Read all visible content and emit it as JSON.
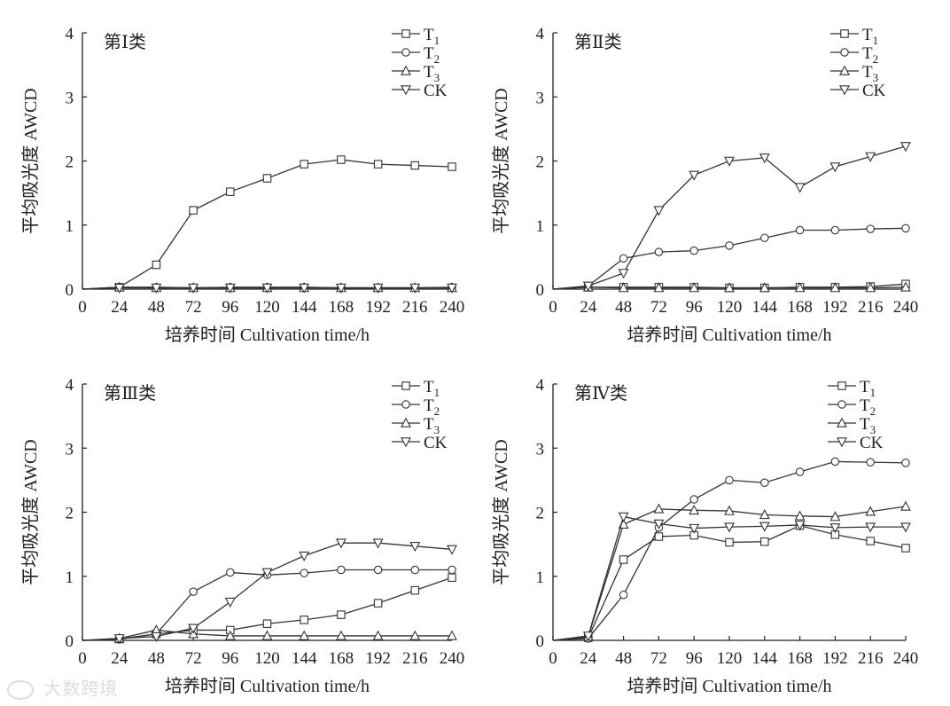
{
  "figure": {
    "watermark": "大数跨境"
  },
  "chart_data": [
    {
      "type": "line",
      "title": "第Ⅰ类",
      "xlabel": "培养时间 Cultivation time/h",
      "ylabel": "平均吸光度 AWCD",
      "x": [
        0,
        24,
        48,
        72,
        96,
        120,
        144,
        168,
        192,
        216,
        240
      ],
      "xlim": [
        0,
        240
      ],
      "ylim": [
        0,
        4
      ],
      "yticks": [
        0,
        1,
        2,
        3,
        4
      ],
      "grid": false,
      "legend": "top-right",
      "series": [
        {
          "name": "T",
          "sub": "1",
          "marker": "square",
          "values": [
            0,
            0.03,
            0.38,
            1.23,
            1.52,
            1.73,
            1.95,
            2.02,
            1.95,
            1.93,
            1.91
          ]
        },
        {
          "name": "T",
          "sub": "2",
          "marker": "circle",
          "values": [
            0,
            0.03,
            0.03,
            0.02,
            0.03,
            0.03,
            0.03,
            0.02,
            0.02,
            0.02,
            0.03
          ]
        },
        {
          "name": "T",
          "sub": "3",
          "marker": "triangle-up",
          "values": [
            0,
            0.03,
            0.02,
            0.02,
            0.02,
            0.02,
            0.02,
            0.02,
            0.02,
            0.02,
            0.02
          ]
        },
        {
          "name": "CK",
          "sub": "",
          "marker": "triangle-down",
          "values": [
            0,
            0.02,
            0.02,
            0.02,
            0.02,
            0.02,
            0.02,
            0.02,
            0.02,
            0.02,
            0.02
          ]
        }
      ]
    },
    {
      "type": "line",
      "title": "第Ⅱ类",
      "xlabel": "培养时间 Cultivation time/h",
      "ylabel": "平均吸光度 AWCD",
      "x": [
        0,
        24,
        48,
        72,
        96,
        120,
        144,
        168,
        192,
        216,
        240
      ],
      "xlim": [
        0,
        240
      ],
      "ylim": [
        0,
        4
      ],
      "yticks": [
        0,
        1,
        2,
        3,
        4
      ],
      "grid": false,
      "legend": "top-right",
      "series": [
        {
          "name": "T",
          "sub": "1",
          "marker": "square",
          "values": [
            0,
            0.03,
            0.03,
            0.03,
            0.03,
            0.02,
            0.02,
            0.03,
            0.03,
            0.04,
            0.08
          ]
        },
        {
          "name": "T",
          "sub": "2",
          "marker": "circle",
          "values": [
            0,
            0.05,
            0.48,
            0.58,
            0.6,
            0.68,
            0.8,
            0.92,
            0.92,
            0.94,
            0.95
          ]
        },
        {
          "name": "T",
          "sub": "3",
          "marker": "triangle-up",
          "values": [
            0,
            0.03,
            0.02,
            0.02,
            0.02,
            0.02,
            0.02,
            0.02,
            0.02,
            0.02,
            0.03
          ]
        },
        {
          "name": "CK",
          "sub": "",
          "marker": "triangle-down",
          "values": [
            0,
            0.05,
            0.25,
            1.23,
            1.78,
            2.0,
            2.05,
            1.59,
            1.91,
            2.07,
            2.23
          ]
        }
      ]
    },
    {
      "type": "line",
      "title": "第Ⅲ类",
      "xlabel": "培养时间 Cultivation time/h",
      "ylabel": "平均吸光度 AWCD",
      "x": [
        0,
        24,
        48,
        72,
        96,
        120,
        144,
        168,
        192,
        216,
        240
      ],
      "xlim": [
        0,
        240
      ],
      "ylim": [
        0,
        4
      ],
      "yticks": [
        0,
        1,
        2,
        3,
        4
      ],
      "grid": false,
      "legend": "top-right",
      "series": [
        {
          "name": "T",
          "sub": "1",
          "marker": "square",
          "values": [
            0,
            0.02,
            0.1,
            0.16,
            0.16,
            0.26,
            0.32,
            0.4,
            0.58,
            0.78,
            0.98
          ]
        },
        {
          "name": "T",
          "sub": "2",
          "marker": "circle",
          "values": [
            0,
            0.02,
            0.1,
            0.76,
            1.06,
            1.02,
            1.05,
            1.1,
            1.1,
            1.1,
            1.1
          ]
        },
        {
          "name": "T",
          "sub": "3",
          "marker": "triangle-up",
          "values": [
            0,
            0.03,
            0.16,
            0.1,
            0.07,
            0.07,
            0.07,
            0.07,
            0.07,
            0.07,
            0.07
          ]
        },
        {
          "name": "CK",
          "sub": "",
          "marker": "triangle-down",
          "values": [
            0,
            0.03,
            0.06,
            0.19,
            0.6,
            1.06,
            1.32,
            1.52,
            1.52,
            1.47,
            1.42
          ]
        }
      ]
    },
    {
      "type": "line",
      "title": "第Ⅳ类",
      "xlabel": "培养时间 Cultivation time/h",
      "ylabel": "平均吸光度 AWCD",
      "x": [
        0,
        24,
        48,
        72,
        96,
        120,
        144,
        168,
        192,
        216,
        240
      ],
      "xlim": [
        0,
        240
      ],
      "ylim": [
        0,
        4
      ],
      "yticks": [
        0,
        1,
        2,
        3,
        4
      ],
      "grid": false,
      "legend": "top-right",
      "series": [
        {
          "name": "T",
          "sub": "1",
          "marker": "square",
          "values": [
            0,
            0.04,
            1.26,
            1.62,
            1.64,
            1.53,
            1.54,
            1.79,
            1.65,
            1.55,
            1.44
          ]
        },
        {
          "name": "T",
          "sub": "2",
          "marker": "circle",
          "values": [
            0,
            0.03,
            0.71,
            1.76,
            2.2,
            2.5,
            2.46,
            2.63,
            2.79,
            2.78,
            2.77
          ]
        },
        {
          "name": "T",
          "sub": "3",
          "marker": "triangle-up",
          "values": [
            0,
            0.06,
            1.81,
            2.05,
            2.03,
            2.02,
            1.96,
            1.94,
            1.93,
            2.01,
            2.09
          ]
        },
        {
          "name": "CK",
          "sub": "",
          "marker": "triangle-down",
          "values": [
            0,
            0.07,
            1.93,
            1.82,
            1.75,
            1.77,
            1.78,
            1.8,
            1.76,
            1.77,
            1.77
          ]
        }
      ]
    }
  ]
}
